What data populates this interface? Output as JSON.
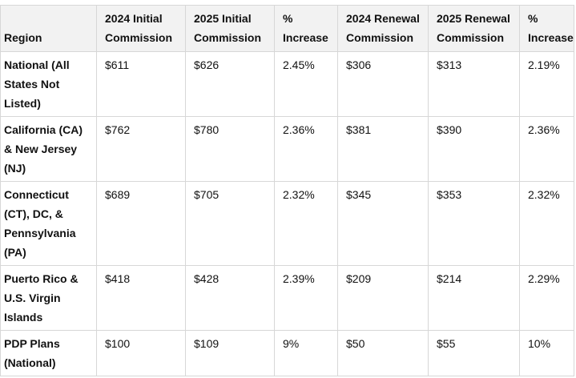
{
  "table": {
    "headers": [
      "Region",
      "2024 Initial Commission",
      "2025 Initial Commission",
      "% Increase",
      "2024 Renewal Commission",
      "2025 Renewal Commission",
      "% Increase"
    ],
    "rows": [
      [
        "National (All States Not Listed)",
        "$611",
        "$626",
        "2.45%",
        "$306",
        "$313",
        "2.19%"
      ],
      [
        "California (CA) & New Jersey (NJ)",
        "$762",
        "$780",
        "2.36%",
        "$381",
        "$390",
        "2.36%"
      ],
      [
        "Connecticut (CT), DC, & Pennsylvania (PA)",
        "$689",
        "$705",
        "2.32%",
        "$345",
        "$353",
        "2.32%"
      ],
      [
        "Puerto Rico & U.S. Virgin Islands",
        "$418",
        "$428",
        "2.39%",
        "$209",
        "$214",
        "2.29%"
      ],
      [
        "PDP Plans (National)",
        "$100",
        "$109",
        "9%",
        "$50",
        "$55",
        "10%"
      ]
    ]
  }
}
